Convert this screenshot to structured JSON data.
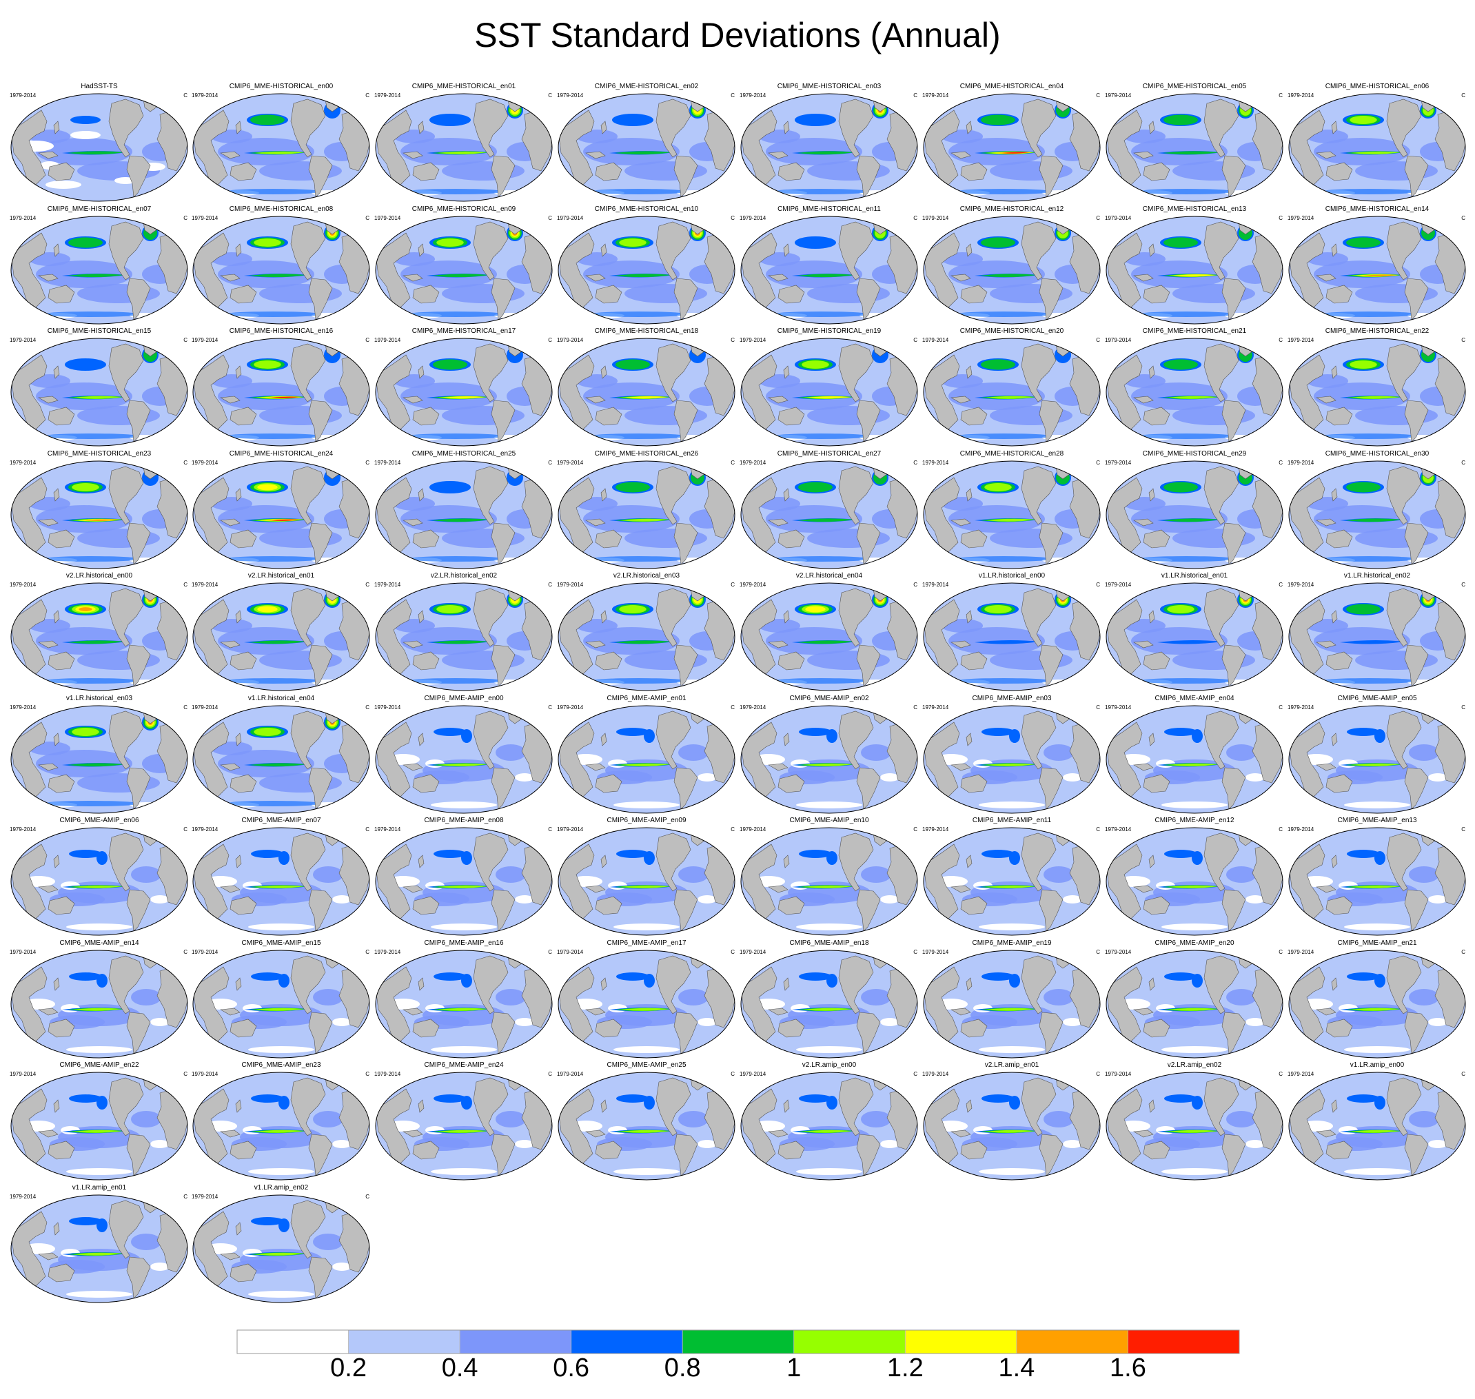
{
  "title": "SST Standard Deviations (Annual)",
  "period": "1979-2014",
  "units": "C",
  "colorbar": {
    "levels": [
      "0.2",
      "0.4",
      "0.6",
      "0.8",
      "1",
      "1.2",
      "1.4",
      "1.6"
    ],
    "colors": [
      "#ffffff",
      "#b4c8fa",
      "#7d96fa",
      "#0064ff",
      "#00be32",
      "#96ff00",
      "#ffff00",
      "#ffa000",
      "#ff1e00"
    ]
  },
  "map_colors": {
    "land": "#bebebe",
    "coast": "#555555",
    "ocean_base": "#b4c8fa"
  },
  "panels": [
    {
      "name": "HadSST-TS",
      "style": "obs"
    },
    {
      "name": "CMIP6_MME-HISTORICAL_en00",
      "style": "hist",
      "enso": 1.1,
      "npac": 0.9,
      "natl": 0.6
    },
    {
      "name": "CMIP6_MME-HISTORICAL_en01",
      "style": "hist",
      "enso": 1.0,
      "npac": 0.7,
      "natl": 1.3
    },
    {
      "name": "CMIP6_MME-HISTORICAL_en02",
      "style": "hist",
      "enso": 0.9,
      "npac": 0.7,
      "natl": 1.3
    },
    {
      "name": "CMIP6_MME-HISTORICAL_en03",
      "style": "hist",
      "enso": 0.8,
      "npac": 0.6,
      "natl": 1.6
    },
    {
      "name": "CMIP6_MME-HISTORICAL_en04",
      "style": "hist",
      "enso": 1.7,
      "npac": 0.9,
      "natl": 0.9
    },
    {
      "name": "CMIP6_MME-HISTORICAL_en05",
      "style": "hist",
      "enso": 0.9,
      "npac": 0.9,
      "natl": 1.0
    },
    {
      "name": "CMIP6_MME-HISTORICAL_en06",
      "style": "hist",
      "enso": 1.0,
      "npac": 1.0,
      "natl": 1.0
    },
    {
      "name": "CMIP6_MME-HISTORICAL_en07",
      "style": "hist",
      "enso": 0.8,
      "npac": 0.8,
      "natl": 0.9
    },
    {
      "name": "CMIP6_MME-HISTORICAL_en08",
      "style": "hist",
      "enso": 0.8,
      "npac": 1.0,
      "natl": 1.6
    },
    {
      "name": "CMIP6_MME-HISTORICAL_en09",
      "style": "hist",
      "enso": 0.8,
      "npac": 1.0,
      "natl": 1.4
    },
    {
      "name": "CMIP6_MME-HISTORICAL_en10",
      "style": "hist",
      "enso": 0.9,
      "npac": 1.0,
      "natl": 1.5
    },
    {
      "name": "CMIP6_MME-HISTORICAL_en11",
      "style": "hist",
      "enso": 0.8,
      "npac": 0.7,
      "natl": 1.0
    },
    {
      "name": "CMIP6_MME-HISTORICAL_en12",
      "style": "hist",
      "enso": 0.8,
      "npac": 0.8,
      "natl": 1.0
    },
    {
      "name": "CMIP6_MME-HISTORICAL_en13",
      "style": "hist",
      "enso": 1.2,
      "npac": 0.9,
      "natl": 0.8
    },
    {
      "name": "CMIP6_MME-HISTORICAL_en14",
      "style": "hist",
      "enso": 1.4,
      "npac": 0.9,
      "natl": 0.8
    },
    {
      "name": "CMIP6_MME-HISTORICAL_en15",
      "style": "hist",
      "enso": 1.1,
      "npac": 0.6,
      "natl": 0.9
    },
    {
      "name": "CMIP6_MME-HISTORICAL_en16",
      "style": "hist",
      "enso": 1.6,
      "npac": 1.1,
      "natl": 0.7
    },
    {
      "name": "CMIP6_MME-HISTORICAL_en17",
      "style": "hist",
      "enso": 1.3,
      "npac": 0.9,
      "natl": 0.7
    },
    {
      "name": "CMIP6_MME-HISTORICAL_en18",
      "style": "hist",
      "enso": 1.2,
      "npac": 0.8,
      "natl": 0.7
    },
    {
      "name": "CMIP6_MME-HISTORICAL_en19",
      "style": "hist",
      "enso": 1.3,
      "npac": 1.1,
      "natl": 0.6
    },
    {
      "name": "CMIP6_MME-HISTORICAL_en20",
      "style": "hist",
      "enso": 1.1,
      "npac": 0.9,
      "natl": 0.7
    },
    {
      "name": "CMIP6_MME-HISTORICAL_en21",
      "style": "hist",
      "enso": 1.0,
      "npac": 0.9,
      "natl": 0.8
    },
    {
      "name": "CMIP6_MME-HISTORICAL_en22",
      "style": "hist",
      "enso": 1.1,
      "npac": 1.1,
      "natl": 0.8
    },
    {
      "name": "CMIP6_MME-HISTORICAL_en23",
      "style": "hist",
      "enso": 1.5,
      "npac": 1.1,
      "natl": 0.7
    },
    {
      "name": "CMIP6_MME-HISTORICAL_en24",
      "style": "hist",
      "enso": 1.7,
      "npac": 1.3,
      "natl": 0.7
    },
    {
      "name": "CMIP6_MME-HISTORICAL_en25",
      "style": "hist",
      "enso": 0.9,
      "npac": 0.7,
      "natl": 0.7
    },
    {
      "name": "CMIP6_MME-HISTORICAL_en26",
      "style": "hist",
      "enso": 1.0,
      "npac": 0.8,
      "natl": 0.9
    },
    {
      "name": "CMIP6_MME-HISTORICAL_en27",
      "style": "hist",
      "enso": 0.8,
      "npac": 0.8,
      "natl": 0.8
    },
    {
      "name": "CMIP6_MME-HISTORICAL_en28",
      "style": "hist",
      "enso": 1.1,
      "npac": 1.0,
      "natl": 0.8
    },
    {
      "name": "CMIP6_MME-HISTORICAL_en29",
      "style": "hist",
      "enso": 0.9,
      "npac": 0.8,
      "natl": 0.8
    },
    {
      "name": "CMIP6_MME-HISTORICAL_en30",
      "style": "hist",
      "enso": 0.8,
      "npac": 0.8,
      "natl": 1.1
    },
    {
      "name": "v2.LR.historical_en00",
      "style": "hist",
      "enso": 0.8,
      "npac": 1.4,
      "natl": 1.4
    },
    {
      "name": "v2.LR.historical_en01",
      "style": "hist",
      "enso": 0.8,
      "npac": 1.2,
      "natl": 1.2
    },
    {
      "name": "v2.LR.historical_en02",
      "style": "hist",
      "enso": 0.8,
      "npac": 1.1,
      "natl": 1.3
    },
    {
      "name": "v2.LR.historical_en03",
      "style": "hist",
      "enso": 0.8,
      "npac": 1.1,
      "natl": 1.3
    },
    {
      "name": "v2.LR.historical_en04",
      "style": "hist",
      "enso": 0.9,
      "npac": 1.3,
      "natl": 1.4
    },
    {
      "name": "v1.LR.historical_en00",
      "style": "hist",
      "enso": 0.7,
      "npac": 1.0,
      "natl": 1.6
    },
    {
      "name": "v1.LR.historical_en01",
      "style": "hist",
      "enso": 0.7,
      "npac": 1.0,
      "natl": 1.6
    },
    {
      "name": "v1.LR.historical_en02",
      "style": "hist",
      "enso": 0.7,
      "npac": 0.9,
      "natl": 1.6
    },
    {
      "name": "v1.LR.historical_en03",
      "style": "hist",
      "enso": 0.8,
      "npac": 1.0,
      "natl": 1.6
    },
    {
      "name": "v1.LR.historical_en04",
      "style": "hist",
      "enso": 0.8,
      "npac": 1.0,
      "natl": 1.6
    },
    {
      "name": "CMIP6_MME-AMIP_en00",
      "style": "amip"
    },
    {
      "name": "CMIP6_MME-AMIP_en01",
      "style": "amip"
    },
    {
      "name": "CMIP6_MME-AMIP_en02",
      "style": "amip"
    },
    {
      "name": "CMIP6_MME-AMIP_en03",
      "style": "amip"
    },
    {
      "name": "CMIP6_MME-AMIP_en04",
      "style": "amip"
    },
    {
      "name": "CMIP6_MME-AMIP_en05",
      "style": "amip"
    },
    {
      "name": "CMIP6_MME-AMIP_en06",
      "style": "amip"
    },
    {
      "name": "CMIP6_MME-AMIP_en07",
      "style": "amip"
    },
    {
      "name": "CMIP6_MME-AMIP_en08",
      "style": "amip"
    },
    {
      "name": "CMIP6_MME-AMIP_en09",
      "style": "amip"
    },
    {
      "name": "CMIP6_MME-AMIP_en10",
      "style": "amip"
    },
    {
      "name": "CMIP6_MME-AMIP_en11",
      "style": "amip"
    },
    {
      "name": "CMIP6_MME-AMIP_en12",
      "style": "amip"
    },
    {
      "name": "CMIP6_MME-AMIP_en13",
      "style": "amip"
    },
    {
      "name": "CMIP6_MME-AMIP_en14",
      "style": "amip"
    },
    {
      "name": "CMIP6_MME-AMIP_en15",
      "style": "amip"
    },
    {
      "name": "CMIP6_MME-AMIP_en16",
      "style": "amip"
    },
    {
      "name": "CMIP6_MME-AMIP_en17",
      "style": "amip"
    },
    {
      "name": "CMIP6_MME-AMIP_en18",
      "style": "amip"
    },
    {
      "name": "CMIP6_MME-AMIP_en19",
      "style": "amip"
    },
    {
      "name": "CMIP6_MME-AMIP_en20",
      "style": "amip"
    },
    {
      "name": "CMIP6_MME-AMIP_en21",
      "style": "amip"
    },
    {
      "name": "CMIP6_MME-AMIP_en22",
      "style": "amip"
    },
    {
      "name": "CMIP6_MME-AMIP_en23",
      "style": "amip"
    },
    {
      "name": "CMIP6_MME-AMIP_en24",
      "style": "amip"
    },
    {
      "name": "CMIP6_MME-AMIP_en25",
      "style": "amip"
    },
    {
      "name": "v2.LR.amip_en00",
      "style": "amip"
    },
    {
      "name": "v2.LR.amip_en01",
      "style": "amip"
    },
    {
      "name": "v2.LR.amip_en02",
      "style": "amip"
    },
    {
      "name": "v1.LR.amip_en00",
      "style": "amip"
    },
    {
      "name": "v1.LR.amip_en01",
      "style": "amip"
    },
    {
      "name": "v1.LR.amip_en02",
      "style": "amip"
    }
  ]
}
